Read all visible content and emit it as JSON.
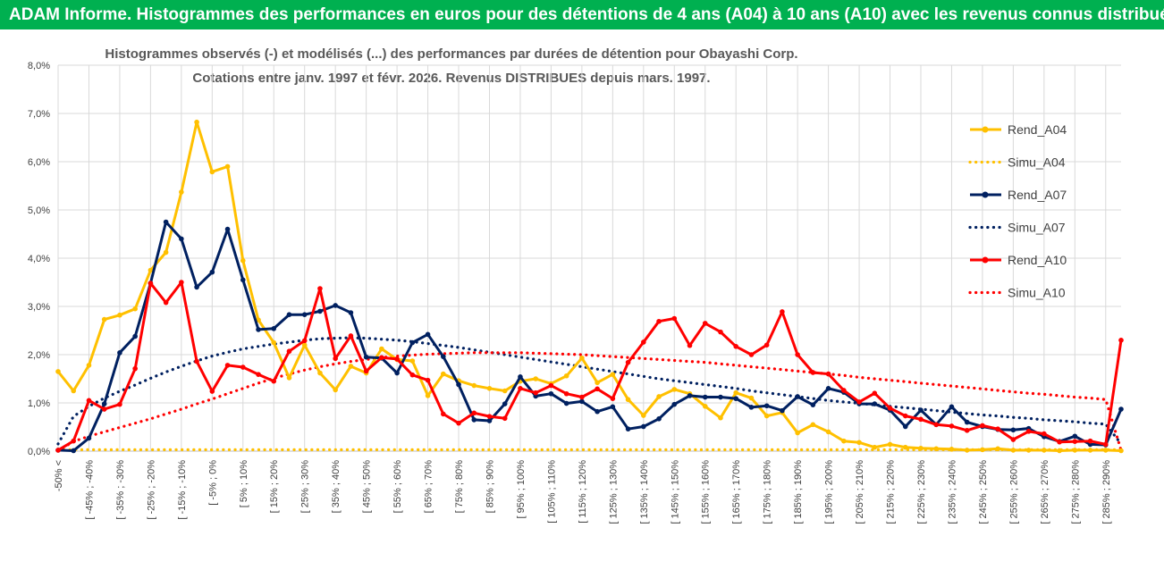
{
  "banner": {
    "title": "ADAM Informe. Histogrammes des performances en euros pour des détentions de 4 ans (A04) à 10 ans (A10) avec les revenus connus distribués"
  },
  "chart_data": {
    "type": "line",
    "title": "Histogrammes observés (-) et modélisés (...) des performances par durées de détention pour Obayashi Corp.",
    "subtitle": "Cotations entre janv. 1997 et févr. 2026. Revenus DISTRIBUES depuis mars. 1997.",
    "ylim": [
      0,
      8
    ],
    "y_ticks": [
      "0,0%",
      "1,0%",
      "2,0%",
      "3,0%",
      "4,0%",
      "5,0%",
      "6,0%",
      "7,0%",
      "8,0%"
    ],
    "x_labels": [
      "-50% <",
      "[ -45% ; -40%",
      "[ -35% ; -30%",
      "[ -25% ; -20%",
      "[ -15% ; -10%",
      "[ -5% ; 0%",
      "[ 5% ; 10%",
      "[ 15% ; 20%",
      "[ 25% ; 30%",
      "[ 35% ; 40%",
      "[ 45% ; 50%",
      "[ 55% ; 60%",
      "[ 65% ; 70%",
      "[ 75% ; 80%",
      "[ 85% ; 90%",
      "[ 95% ; 100%",
      "[ 105% ; 110%",
      "[ 115% ; 120%",
      "[ 125% ; 130%",
      "[ 135% ; 140%",
      "[ 145% ; 150%",
      "[ 155% ; 160%",
      "[ 165% ; 170%",
      "[ 175% ; 180%",
      "[ 185% ; 190%",
      "[ 195% ; 200%",
      "[ 205% ; 210%",
      "[ 215% ; 220%",
      "[ 225% ; 230%",
      "[ 235% ; 240%",
      "[ 245% ; 250%",
      "[ 255% ; 260%",
      "[ 265% ; 270%",
      "[ 275% ; 280%",
      "[ 285% ; 290%"
    ],
    "n_points": 70,
    "legend": {
      "position": "right"
    },
    "series": [
      {
        "name": "Rend_A04",
        "style": "solid",
        "color": "#ffc000",
        "values": [
          1.65,
          1.25,
          1.78,
          2.73,
          2.82,
          2.95,
          3.75,
          4.12,
          5.37,
          6.82,
          5.79,
          5.9,
          3.95,
          2.72,
          2.25,
          1.52,
          2.2,
          1.62,
          1.27,
          1.76,
          1.62,
          2.12,
          1.9,
          1.87,
          1.15,
          1.6,
          1.46,
          1.36,
          1.3,
          1.25,
          1.45,
          1.5,
          1.4,
          1.56,
          1.93,
          1.42,
          1.59,
          1.07,
          0.74,
          1.13,
          1.28,
          1.19,
          0.93,
          0.69,
          1.21,
          1.1,
          0.73,
          0.8,
          0.38,
          0.55,
          0.4,
          0.21,
          0.18,
          0.08,
          0.14,
          0.08,
          0.06,
          0.05,
          0.04,
          0.02,
          0.03,
          0.05,
          0.02,
          0.02,
          0.02,
          0.01,
          0.02,
          0.02,
          0.02,
          0.01
        ]
      },
      {
        "name": "Simu_A04",
        "style": "dotted",
        "color": "#ffc000",
        "values": [
          0.03,
          0.03,
          0.03,
          0.03,
          0.03,
          0.03,
          0.03,
          0.03,
          0.03,
          0.03,
          0.03,
          0.03,
          0.03,
          0.03,
          0.03,
          0.03,
          0.03,
          0.03,
          0.03,
          0.03,
          0.03,
          0.03,
          0.03,
          0.03,
          0.03,
          0.03,
          0.03,
          0.03,
          0.03,
          0.03,
          0.03,
          0.03,
          0.03,
          0.03,
          0.03,
          0.03,
          0.03,
          0.03,
          0.03,
          0.03,
          0.03,
          0.03,
          0.03,
          0.03,
          0.03,
          0.03,
          0.03,
          0.03,
          0.03,
          0.03,
          0.03,
          0.03,
          0.03,
          0.03,
          0.03,
          0.03,
          0.03,
          0.03,
          0.03,
          0.03,
          0.03,
          0.03,
          0.03,
          0.03,
          0.03,
          0.03,
          0.03,
          0.03,
          0.03,
          0.03
        ]
      },
      {
        "name": "Rend_A07",
        "style": "solid",
        "color": "#002060",
        "values": [
          0.02,
          0.01,
          0.27,
          0.98,
          2.04,
          2.38,
          3.48,
          4.75,
          4.4,
          3.4,
          3.71,
          4.6,
          3.55,
          2.52,
          2.54,
          2.83,
          2.83,
          2.9,
          3.02,
          2.87,
          1.95,
          1.93,
          1.62,
          2.25,
          2.42,
          1.96,
          1.38,
          0.65,
          0.63,
          0.98,
          1.54,
          1.14,
          1.19,
          0.99,
          1.03,
          0.82,
          0.92,
          0.46,
          0.51,
          0.67,
          0.97,
          1.15,
          1.12,
          1.12,
          1.09,
          0.91,
          0.94,
          0.84,
          1.13,
          0.96,
          1.3,
          1.22,
          0.98,
          0.98,
          0.85,
          0.51,
          0.85,
          0.55,
          0.92,
          0.6,
          0.51,
          0.45,
          0.44,
          0.47,
          0.3,
          0.2,
          0.31,
          0.14,
          0.13,
          0.87
        ]
      },
      {
        "name": "Simu_A07",
        "style": "dotted",
        "color": "#002060",
        "values": [
          0.15,
          0.72,
          0.93,
          1.1,
          1.24,
          1.37,
          1.51,
          1.64,
          1.76,
          1.87,
          1.97,
          2.05,
          2.12,
          2.17,
          2.22,
          2.26,
          2.3,
          2.33,
          2.34,
          2.35,
          2.34,
          2.32,
          2.3,
          2.27,
          2.23,
          2.19,
          2.15,
          2.1,
          2.05,
          2.0,
          1.95,
          1.9,
          1.85,
          1.8,
          1.75,
          1.7,
          1.65,
          1.6,
          1.55,
          1.5,
          1.46,
          1.42,
          1.38,
          1.34,
          1.3,
          1.25,
          1.21,
          1.17,
          1.13,
          1.09,
          1.05,
          1.02,
          0.99,
          0.96,
          0.93,
          0.9,
          0.87,
          0.84,
          0.81,
          0.78,
          0.75,
          0.73,
          0.7,
          0.68,
          0.65,
          0.63,
          0.61,
          0.58,
          0.56,
          0.15
        ]
      },
      {
        "name": "Rend_A10",
        "style": "solid",
        "color": "#ff0000",
        "values": [
          0.02,
          0.21,
          1.05,
          0.87,
          0.97,
          1.71,
          3.48,
          3.08,
          3.5,
          1.86,
          1.24,
          1.78,
          1.74,
          1.59,
          1.45,
          2.07,
          2.29,
          3.37,
          1.92,
          2.39,
          1.66,
          1.94,
          1.91,
          1.58,
          1.47,
          0.77,
          0.58,
          0.79,
          0.72,
          0.68,
          1.3,
          1.21,
          1.36,
          1.19,
          1.12,
          1.29,
          1.09,
          1.84,
          2.26,
          2.69,
          2.75,
          2.19,
          2.65,
          2.47,
          2.17,
          2.0,
          2.2,
          2.89,
          2.0,
          1.63,
          1.6,
          1.26,
          1.02,
          1.2,
          0.89,
          0.73,
          0.66,
          0.55,
          0.52,
          0.43,
          0.53,
          0.46,
          0.24,
          0.41,
          0.36,
          0.19,
          0.2,
          0.21,
          0.14,
          2.3
        ]
      },
      {
        "name": "Simu_A10",
        "style": "dotted",
        "color": "#ff0000",
        "values": [
          0.01,
          0.2,
          0.31,
          0.4,
          0.49,
          0.58,
          0.67,
          0.77,
          0.87,
          0.98,
          1.08,
          1.19,
          1.3,
          1.41,
          1.51,
          1.6,
          1.68,
          1.75,
          1.81,
          1.86,
          1.9,
          1.94,
          1.97,
          1.99,
          2.01,
          2.02,
          2.03,
          2.04,
          2.04,
          2.04,
          2.04,
          2.03,
          2.02,
          2.01,
          2.0,
          1.98,
          1.96,
          1.94,
          1.92,
          1.9,
          1.88,
          1.86,
          1.84,
          1.81,
          1.78,
          1.75,
          1.72,
          1.69,
          1.66,
          1.63,
          1.6,
          1.57,
          1.53,
          1.5,
          1.47,
          1.44,
          1.41,
          1.38,
          1.35,
          1.32,
          1.29,
          1.26,
          1.23,
          1.2,
          1.18,
          1.15,
          1.12,
          1.1,
          1.07,
          0.02
        ]
      }
    ]
  }
}
